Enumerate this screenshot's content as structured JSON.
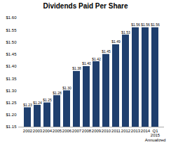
{
  "chart_data": {
    "type": "bar",
    "title": "Dividends Paid Per Share",
    "categories": [
      "2002",
      "2003",
      "2004",
      "2005",
      "2006",
      "2007",
      "2008",
      "2009",
      "2010",
      "2011",
      "2012",
      "2013",
      "2014",
      "Q1\n2015\nAnnualized"
    ],
    "values": [
      1.23,
      1.24,
      1.25,
      1.28,
      1.3,
      1.38,
      1.4,
      1.42,
      1.45,
      1.49,
      1.53,
      1.56,
      1.56,
      1.56
    ],
    "value_labels": [
      "$1.23",
      "$1.24",
      "$1.25",
      "$1.28",
      "$1.30",
      "$1.38",
      "$1.40",
      "$1.42",
      "$1.45",
      "$1.49",
      "$1.53",
      "$1.56",
      "$1.56",
      "$1.56"
    ],
    "data_labels": true,
    "color": "#1f3f6e",
    "ylim": [
      1.15,
      1.6
    ],
    "yticks": [
      {
        "value": 1.15,
        "label": "$1.15"
      },
      {
        "value": 1.2,
        "label": "$1.20"
      },
      {
        "value": 1.25,
        "label": "$1.25"
      },
      {
        "value": 1.3,
        "label": "$1.30"
      },
      {
        "value": 1.35,
        "label": "$1.35"
      },
      {
        "value": 1.4,
        "label": "$1.40"
      },
      {
        "value": 1.45,
        "label": "$1.45"
      },
      {
        "value": 1.5,
        "label": "$1.50"
      },
      {
        "value": 1.55,
        "label": "$1.55"
      },
      {
        "value": 1.6,
        "label": "$1.60"
      }
    ],
    "grid": false
  }
}
